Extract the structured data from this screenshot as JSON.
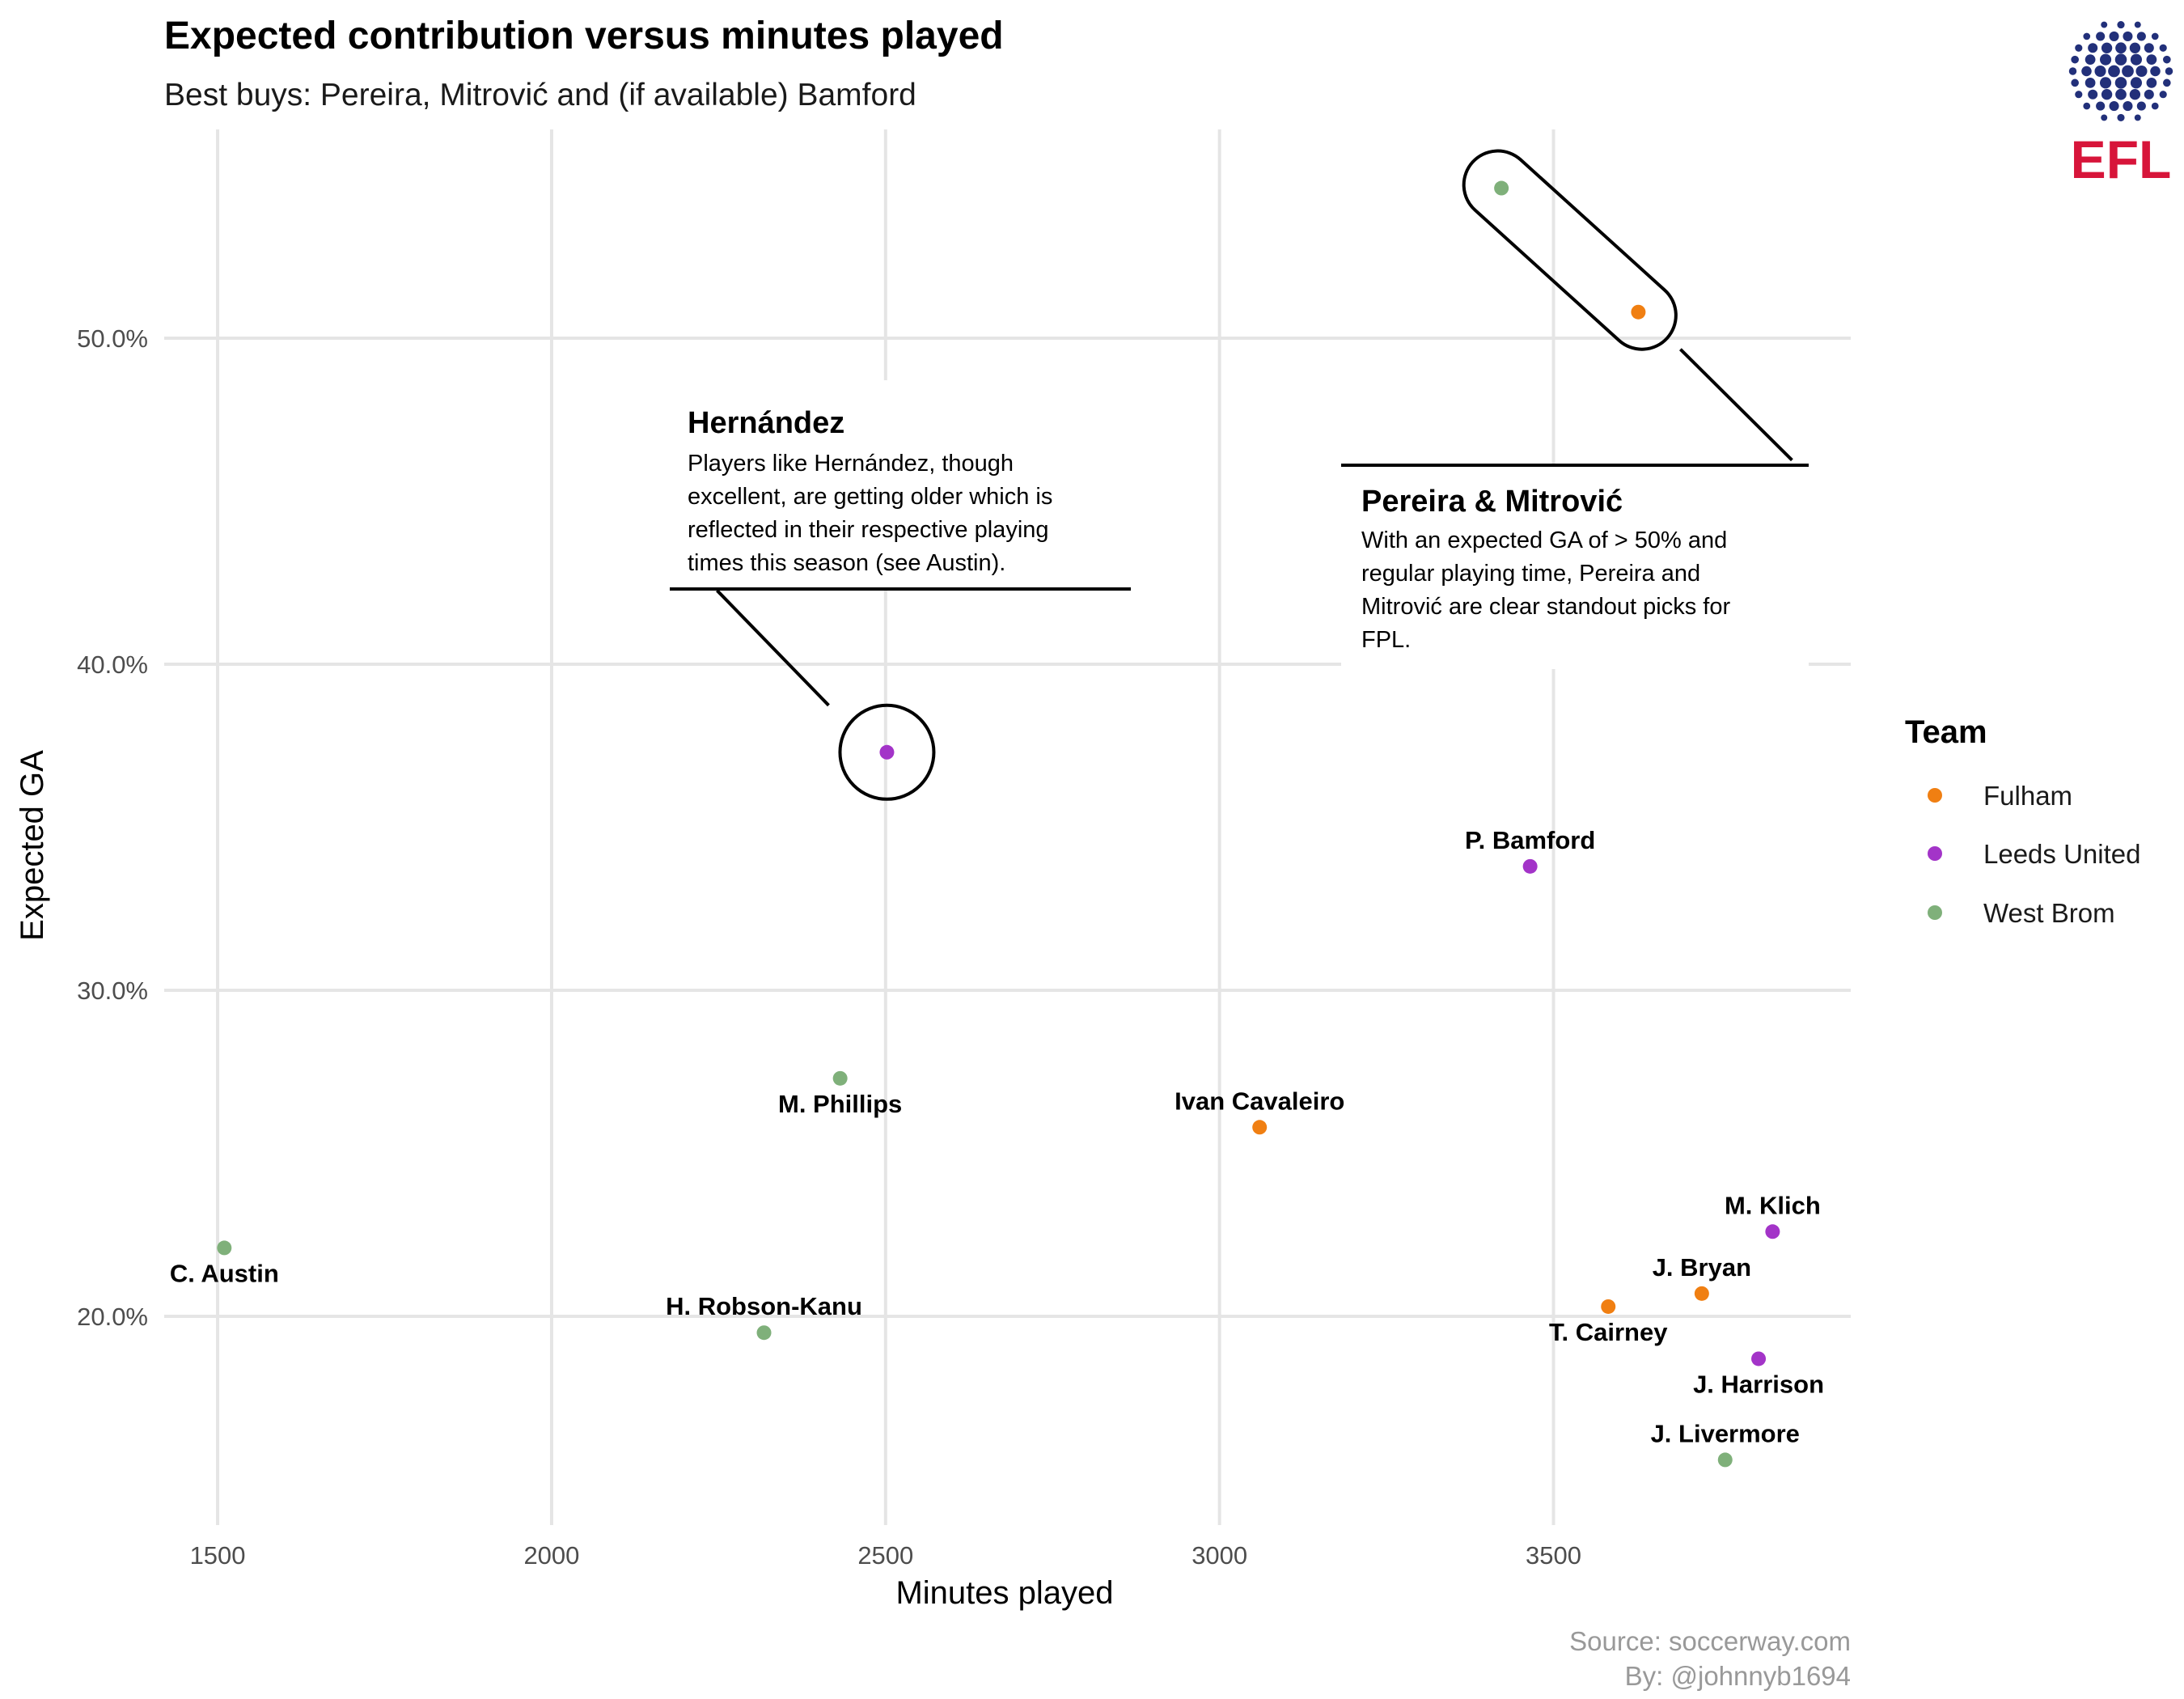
{
  "chart_data": {
    "type": "scatter",
    "title": "Expected contribution versus minutes played",
    "subtitle": "Best buys: Pereira, Mitrović and (if available) Bamford",
    "xlabel": "Minutes played",
    "ylabel": "Expected GA",
    "xlim": [
      1420,
      3945
    ],
    "ylim": [
      0.136,
      0.564
    ],
    "x_ticks": [
      1500,
      2000,
      2500,
      3000,
      3500
    ],
    "y_ticks": [
      0.2,
      0.3,
      0.4,
      0.5
    ],
    "y_tick_labels": [
      "20.0%",
      "30.0%",
      "40.0%",
      "50.0%"
    ],
    "grid": true,
    "legend": {
      "title": "Team",
      "position": "right",
      "entries": [
        {
          "name": "Fulham",
          "color": "#f07f12"
        },
        {
          "name": "Leeds United",
          "color": "#a334c8"
        },
        {
          "name": "West Brom",
          "color": "#7fb07a"
        }
      ]
    },
    "points": [
      {
        "label": "C. Austin",
        "team": "West Brom",
        "x": 1510,
        "y": 0.221,
        "label_pos": "below"
      },
      {
        "label": "H. Robson-Kanu",
        "team": "West Brom",
        "x": 2318,
        "y": 0.195,
        "label_pos": "above"
      },
      {
        "label": "M. Phillips",
        "team": "West Brom",
        "x": 2432,
        "y": 0.273,
        "label_pos": "below"
      },
      {
        "label": "",
        "team": "Leeds United",
        "x": 2502,
        "y": 0.373,
        "label_pos": "none"
      },
      {
        "label": "Ivan Cavaleiro",
        "team": "Fulham",
        "x": 3060,
        "y": 0.258,
        "label_pos": "above"
      },
      {
        "label": "P. Bamford",
        "team": "Leeds United",
        "x": 3465,
        "y": 0.338,
        "label_pos": "above"
      },
      {
        "label": "",
        "team": "West Brom",
        "x": 3422,
        "y": 0.546,
        "label_pos": "none"
      },
      {
        "label": "",
        "team": "Fulham",
        "x": 3627,
        "y": 0.508,
        "label_pos": "none"
      },
      {
        "label": "T. Cairney",
        "team": "Fulham",
        "x": 3582,
        "y": 0.203,
        "label_pos": "below"
      },
      {
        "label": "J. Bryan",
        "team": "Fulham",
        "x": 3722,
        "y": 0.207,
        "label_pos": "above"
      },
      {
        "label": "M. Klich",
        "team": "Leeds United",
        "x": 3828,
        "y": 0.226,
        "label_pos": "above"
      },
      {
        "label": "J. Harrison",
        "team": "Leeds United",
        "x": 3807,
        "y": 0.187,
        "label_pos": "below"
      },
      {
        "label": "J. Livermore",
        "team": "West Brom",
        "x": 3757,
        "y": 0.156,
        "label_pos": "above"
      }
    ],
    "annotations": [
      {
        "title": "Hernández",
        "lines": [
          "Players like Hernández, though",
          "excellent, are getting older which is",
          "reflected in their respective playing",
          "times this season (see Austin)."
        ]
      },
      {
        "title": "Pereira & Mitrović",
        "lines": [
          "With an expected GA of > 50% and",
          "regular playing time, Pereira and",
          "Mitrović are clear standout picks for",
          "FPL."
        ]
      }
    ]
  },
  "caption": {
    "source": "Source: soccerway.com",
    "by": "By: @johnnyb1694"
  },
  "logo": {
    "text": "EFL",
    "icon": "efl-ball-icon",
    "colors": {
      "ball": "#22307a",
      "text": "#d7153a"
    }
  }
}
